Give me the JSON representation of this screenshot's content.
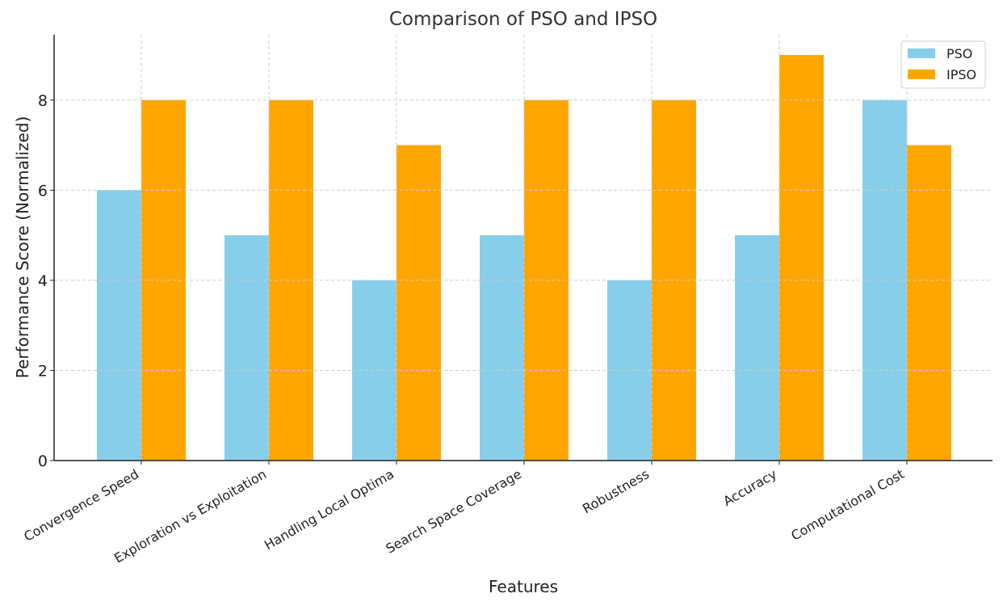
{
  "chart_data": {
    "type": "bar",
    "title": "Comparison of PSO and IPSO",
    "xlabel": "Features",
    "ylabel": "Performance Score (Normalized)",
    "categories": [
      "Convergence Speed",
      "Exploration vs Exploitation",
      "Handling Local Optima",
      "Search Space Coverage",
      "Robustness",
      "Accuracy",
      "Computational Cost"
    ],
    "series": [
      {
        "name": "PSO",
        "color": "#87CEEB",
        "values": [
          6,
          5,
          4,
          5,
          4,
          5,
          8
        ]
      },
      {
        "name": "IPSO",
        "color": "#FFA500",
        "values": [
          8,
          8,
          7,
          8,
          8,
          9,
          7
        ]
      }
    ],
    "ylim": [
      0,
      9.45
    ],
    "yticks": [
      "0",
      "2",
      "4",
      "6",
      "8"
    ],
    "grid": true,
    "legend_position": "top-right"
  }
}
